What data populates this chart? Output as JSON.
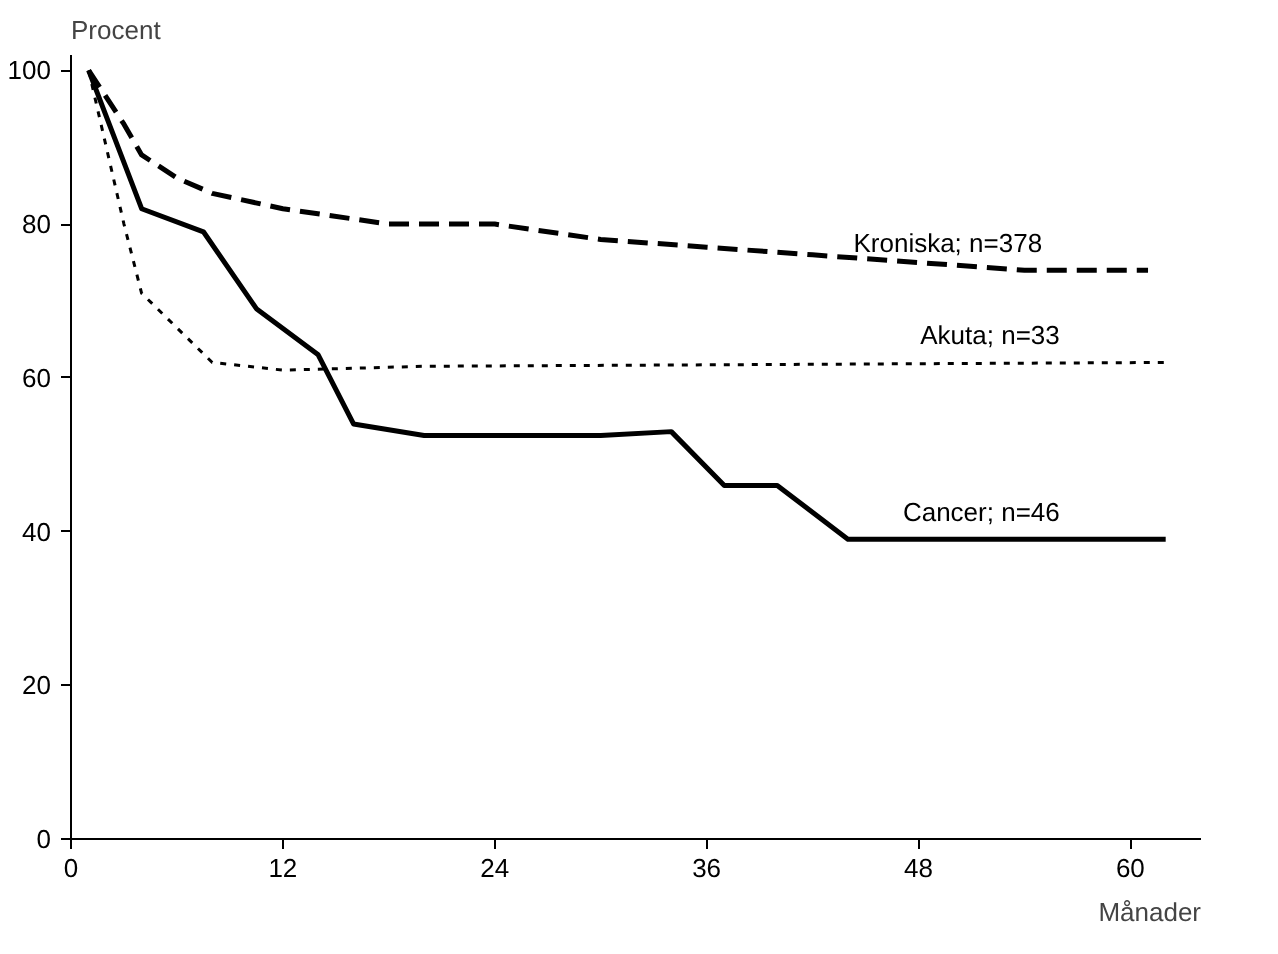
{
  "chart_data": {
    "type": "line",
    "xlabel": "Månader",
    "ylabel": "Procent",
    "xlim": [
      0,
      64
    ],
    "ylim": [
      0,
      102
    ],
    "xticks": [
      0,
      12,
      24,
      36,
      48,
      60
    ],
    "yticks": [
      0,
      20,
      40,
      60,
      80,
      100
    ],
    "grid": false,
    "marker": "none",
    "series": [
      {
        "name": "Kroniska; n=378",
        "color": "#000000",
        "line_style": "dashed",
        "x": [
          1,
          3,
          4,
          6,
          8,
          12,
          18,
          24,
          30,
          36,
          42,
          48,
          54,
          61
        ],
        "values": [
          100,
          93,
          89,
          86,
          84,
          82,
          80,
          80,
          78,
          77,
          76,
          75,
          74,
          74
        ]
      },
      {
        "name": "Akuta; n=33",
        "color": "#000000",
        "line_style": "dotted",
        "x": [
          1,
          3,
          4,
          8,
          12,
          20,
          62
        ],
        "values": [
          100,
          80,
          71,
          62,
          61,
          61.5,
          62
        ]
      },
      {
        "name": "Cancer; n=46",
        "color": "#000000",
        "line_style": "solid",
        "x": [
          1,
          4,
          7.5,
          10.5,
          14,
          16,
          20,
          30,
          34,
          37,
          40,
          44,
          62
        ],
        "values": [
          100,
          82,
          79,
          69,
          63,
          54,
          52.5,
          52.5,
          53,
          46,
          46,
          39,
          39
        ]
      }
    ]
  }
}
